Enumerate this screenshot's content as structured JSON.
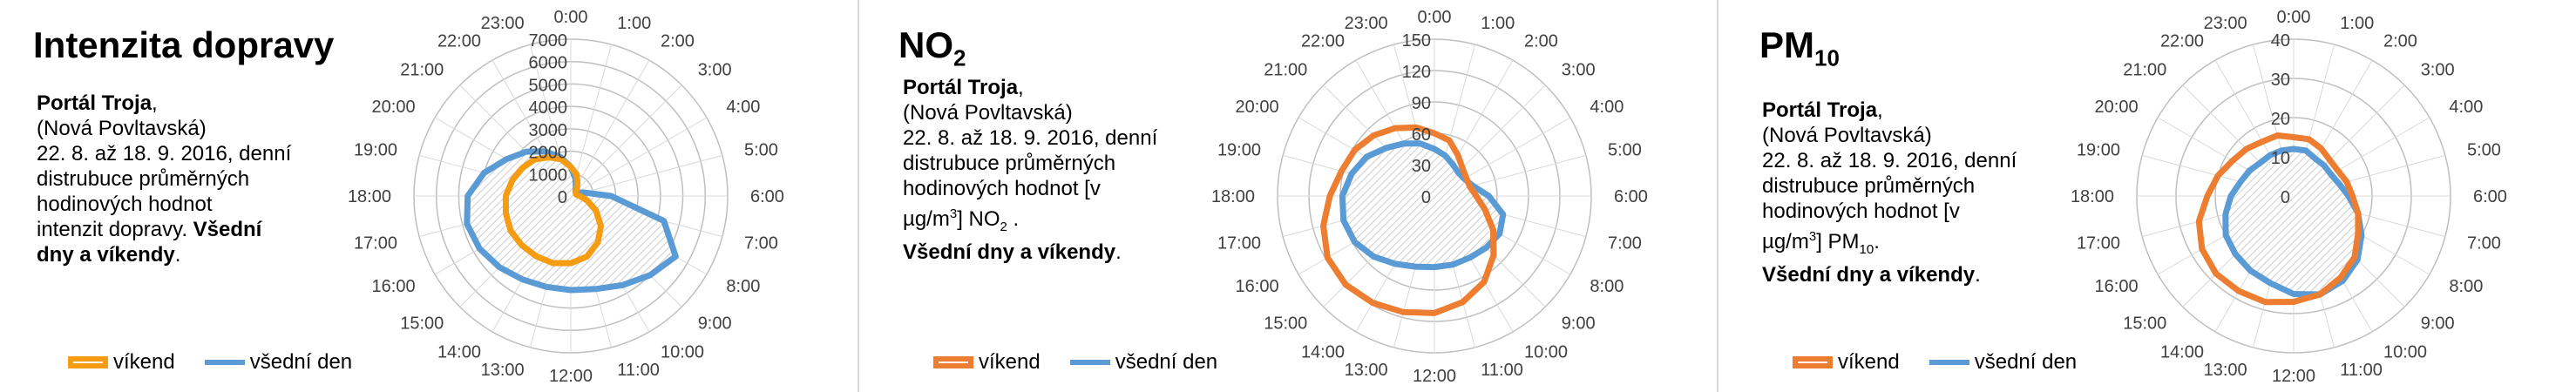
{
  "panels": [
    {
      "title": "Intenzita dopravy",
      "title_sub": "",
      "desc": {
        "station_bold": "Portál Troja",
        "station_comma": ",",
        "street": "(Nová Povltavská)",
        "line3": "22. 8. až 18. 9. 2016, denní",
        "line4": "distrubuce průměrných",
        "line5": "hodinových hodnot",
        "line6_a": "intenzit dopravy. ",
        "line6_bold": "Všední",
        "line7_bold": "dny a víkendy",
        "line7_end": "."
      },
      "legend": {
        "weekend": "víkend",
        "weekday": "všední den"
      }
    },
    {
      "title": "NO",
      "title_sub": "2",
      "desc": {
        "station_bold": "Portál Troja",
        "station_comma": ",",
        "street": "(Nová Povltavská)",
        "line3": "22. 8. až 18. 9. 2016, denní",
        "line4": "distrubuce průměrných",
        "line5": "hodinových hodnot  [v",
        "line6_a": "µg/m",
        "line6_sup": "3",
        "line6_b": "] NO",
        "line6_sub": "2",
        "line6_c": " .",
        "line7_bold": "Všední dny a víkendy",
        "line7_end": "."
      },
      "legend": {
        "weekend": "víkend",
        "weekday": "všední den"
      }
    },
    {
      "title": "PM",
      "title_sub": "10",
      "desc": {
        "station_bold": "Portál Troja",
        "station_comma": ",",
        "street": "(Nová Povltavská)",
        "line3": "22. 8. až 18. 9. 2016, denní",
        "line4": "distrubuce průměrných",
        "line5": "hodinových hodnot  [v",
        "line6_a": "µg/m",
        "line6_sup": "3",
        "line6_b": "] PM",
        "line6_sub": "10",
        "line6_c": ".",
        "line7_bold": "Všední dny a víkendy",
        "line7_end": "."
      },
      "legend": {
        "weekend": "víkend",
        "weekday": "všední den"
      }
    }
  ],
  "chart_data": [
    {
      "type": "radar",
      "categories": [
        "1:00",
        "2:00",
        "3:00",
        "4:00",
        "5:00",
        "6:00",
        "7:00",
        "8:00",
        "9:00",
        "10:00",
        "11:00",
        "12:00",
        "13:00",
        "14:00",
        "15:00",
        "16:00",
        "17:00",
        "18:00",
        "19:00",
        "20:00",
        "21:00",
        "22:00",
        "23:00",
        "0:00"
      ],
      "rlim": [
        0,
        7000
      ],
      "ticks": [
        0,
        1000,
        2000,
        3000,
        4000,
        5000,
        6000,
        7000
      ],
      "tick_labels": [
        "0",
        "1000",
        "2000",
        "3000",
        "4000",
        "5000",
        "6000",
        "7000"
      ],
      "series": [
        {
          "name": "víkend",
          "color": "#f59c12",
          "open": true,
          "values": [
            1000,
            600,
            350,
            250,
            250,
            400,
            750,
            1300,
            1900,
            2400,
            2800,
            3000,
            3100,
            3100,
            3100,
            3100,
            3000,
            2900,
            2700,
            2500,
            2300,
            2000,
            1700,
            1300
          ]
        },
        {
          "name": "všední den",
          "color": "#5b9bd5",
          "open": false,
          "values": [
            800,
            450,
            300,
            300,
            600,
            1800,
            4300,
            5400,
            5000,
            4600,
            4300,
            4200,
            4200,
            4300,
            4500,
            4700,
            4800,
            4600,
            4000,
            3300,
            2800,
            2300,
            1800,
            1300
          ]
        }
      ]
    },
    {
      "type": "radar",
      "categories": [
        "1:00",
        "2:00",
        "3:00",
        "4:00",
        "5:00",
        "6:00",
        "7:00",
        "8:00",
        "9:00",
        "10:00",
        "11:00",
        "12:00",
        "13:00",
        "14:00",
        "15:00",
        "16:00",
        "17:00",
        "18:00",
        "19:00",
        "20:00",
        "21:00",
        "22:00",
        "23:00",
        "0:00"
      ],
      "rlim": [
        0,
        150
      ],
      "ticks": [
        0,
        30,
        60,
        90,
        120,
        150
      ],
      "tick_labels": [
        "0",
        "30",
        "60",
        "90",
        "120",
        "150"
      ],
      "series": [
        {
          "name": "víkend",
          "color": "#ed7d31",
          "open": true,
          "values": [
            55,
            45,
            38,
            35,
            35,
            40,
            50,
            65,
            80,
            95,
            105,
            112,
            115,
            118,
            120,
            118,
            110,
            100,
            92,
            88,
            82,
            75,
            68,
            60
          ]
        },
        {
          "name": "všední den",
          "color": "#5b9bd5",
          "open": false,
          "values": [
            40,
            35,
            32,
            33,
            38,
            52,
            68,
            72,
            70,
            68,
            68,
            68,
            70,
            75,
            82,
            88,
            90,
            88,
            82,
            75,
            65,
            58,
            52,
            45
          ]
        }
      ]
    },
    {
      "type": "radar",
      "categories": [
        "1:00",
        "2:00",
        "3:00",
        "4:00",
        "5:00",
        "6:00",
        "7:00",
        "8:00",
        "9:00",
        "10:00",
        "11:00",
        "12:00",
        "13:00",
        "14:00",
        "15:00",
        "16:00",
        "17:00",
        "18:00",
        "19:00",
        "20:00",
        "21:00",
        "22:00",
        "23:00",
        "0:00"
      ],
      "rlim": [
        0,
        40
      ],
      "ticks": [
        0,
        10,
        20,
        30,
        40
      ],
      "tick_labels": [
        "0",
        "10",
        "20",
        "30",
        "40"
      ],
      "series": [
        {
          "name": "víkend",
          "color": "#ed7d31",
          "open": true,
          "values": [
            15,
            14,
            13,
            13,
            14,
            15,
            17,
            19,
            22,
            24,
            26,
            27,
            28,
            28,
            28,
            27,
            25,
            22,
            20,
            18,
            17,
            16,
            16,
            15
          ]
        },
        {
          "name": "všední den",
          "color": "#5b9bd5",
          "open": false,
          "values": [
            12,
            11,
            11,
            11,
            12,
            14,
            17,
            20,
            23,
            25,
            26,
            25,
            23,
            22,
            21,
            20,
            18,
            16,
            14,
            13,
            12,
            12,
            12,
            12
          ]
        }
      ]
    }
  ]
}
